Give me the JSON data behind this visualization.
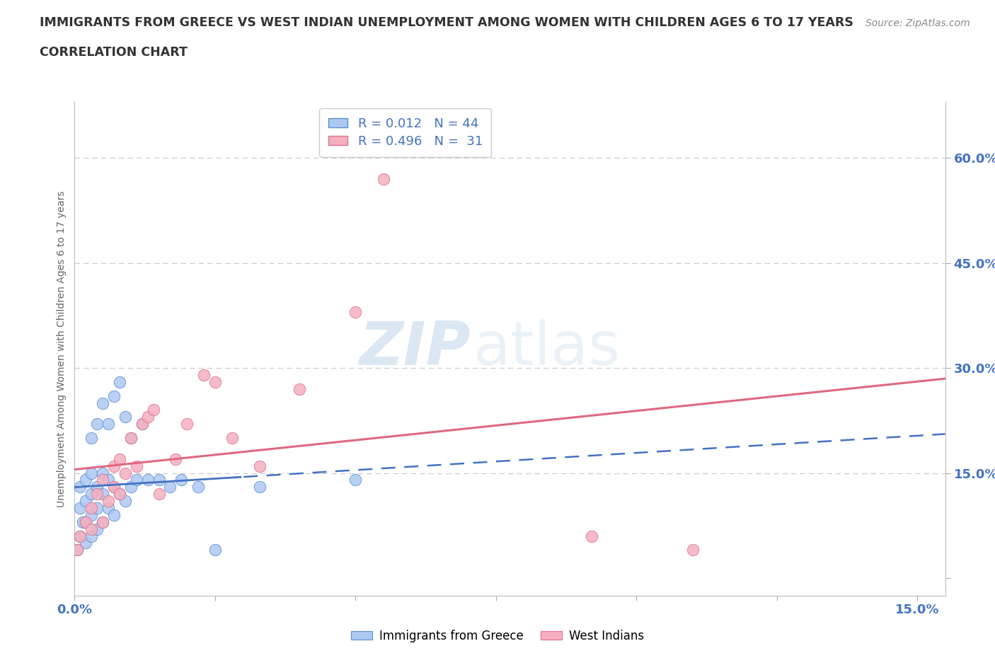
{
  "title_line1": "IMMIGRANTS FROM GREECE VS WEST INDIAN UNEMPLOYMENT AMONG WOMEN WITH CHILDREN AGES 6 TO 17 YEARS",
  "title_line2": "CORRELATION CHART",
  "source": "Source: ZipAtlas.com",
  "series1_label": "Immigrants from Greece",
  "series2_label": "West Indians",
  "ylabel_label": "Unemployment Among Women with Children Ages 6 to 17 years",
  "xlim": [
    0.0,
    0.155
  ],
  "ylim": [
    -0.025,
    0.68
  ],
  "xtick_vals": [
    0.0,
    0.025,
    0.05,
    0.075,
    0.1,
    0.125,
    0.15
  ],
  "xtick_labels": [
    "0.0%",
    "",
    "",
    "",
    "",
    "",
    "15.0%"
  ],
  "ytick_vals": [
    0.0,
    0.15,
    0.3,
    0.45,
    0.6
  ],
  "ytick_labels": [
    "",
    "15.0%",
    "30.0%",
    "45.0%",
    "60.0%"
  ],
  "grid_color": "#cccccc",
  "legend_r1": "0.012",
  "legend_n1": "44",
  "legend_r2": "0.496",
  "legend_n2": "31",
  "color_blue_fill": "#adc8f0",
  "color_blue_edge": "#5b8fd6",
  "color_blue_line": "#4472c4",
  "color_pink_fill": "#f5b0c0",
  "color_pink_edge": "#e07090",
  "color_pink_line": "#e06880",
  "color_tick_label": "#4472c4",
  "color_title": "#333333",
  "color_source": "#888888",
  "color_ylabel": "#666666",
  "blue_x": [
    0.0005,
    0.001,
    0.001,
    0.001,
    0.0015,
    0.002,
    0.002,
    0.002,
    0.002,
    0.003,
    0.003,
    0.003,
    0.003,
    0.003,
    0.004,
    0.004,
    0.004,
    0.004,
    0.005,
    0.005,
    0.005,
    0.005,
    0.006,
    0.006,
    0.006,
    0.007,
    0.007,
    0.007,
    0.008,
    0.008,
    0.009,
    0.009,
    0.01,
    0.01,
    0.011,
    0.012,
    0.013,
    0.015,
    0.017,
    0.019,
    0.022,
    0.025,
    0.033,
    0.05
  ],
  "blue_y": [
    0.04,
    0.06,
    0.1,
    0.13,
    0.08,
    0.05,
    0.08,
    0.11,
    0.14,
    0.06,
    0.09,
    0.12,
    0.15,
    0.2,
    0.07,
    0.1,
    0.13,
    0.22,
    0.08,
    0.12,
    0.15,
    0.25,
    0.1,
    0.14,
    0.22,
    0.09,
    0.13,
    0.26,
    0.12,
    0.28,
    0.11,
    0.23,
    0.13,
    0.2,
    0.14,
    0.22,
    0.14,
    0.14,
    0.13,
    0.14,
    0.13,
    0.04,
    0.13,
    0.14
  ],
  "pink_x": [
    0.0005,
    0.001,
    0.002,
    0.003,
    0.003,
    0.004,
    0.005,
    0.005,
    0.006,
    0.007,
    0.007,
    0.008,
    0.008,
    0.009,
    0.01,
    0.011,
    0.012,
    0.013,
    0.014,
    0.015,
    0.018,
    0.02,
    0.023,
    0.025,
    0.028,
    0.033,
    0.04,
    0.05,
    0.055,
    0.092,
    0.11
  ],
  "pink_y": [
    0.04,
    0.06,
    0.08,
    0.07,
    0.1,
    0.12,
    0.08,
    0.14,
    0.11,
    0.13,
    0.16,
    0.12,
    0.17,
    0.15,
    0.2,
    0.16,
    0.22,
    0.23,
    0.24,
    0.12,
    0.17,
    0.22,
    0.29,
    0.28,
    0.2,
    0.16,
    0.27,
    0.38,
    0.57,
    0.06,
    0.04
  ],
  "watermark_zip": "ZIP",
  "watermark_atlas": "atlas"
}
